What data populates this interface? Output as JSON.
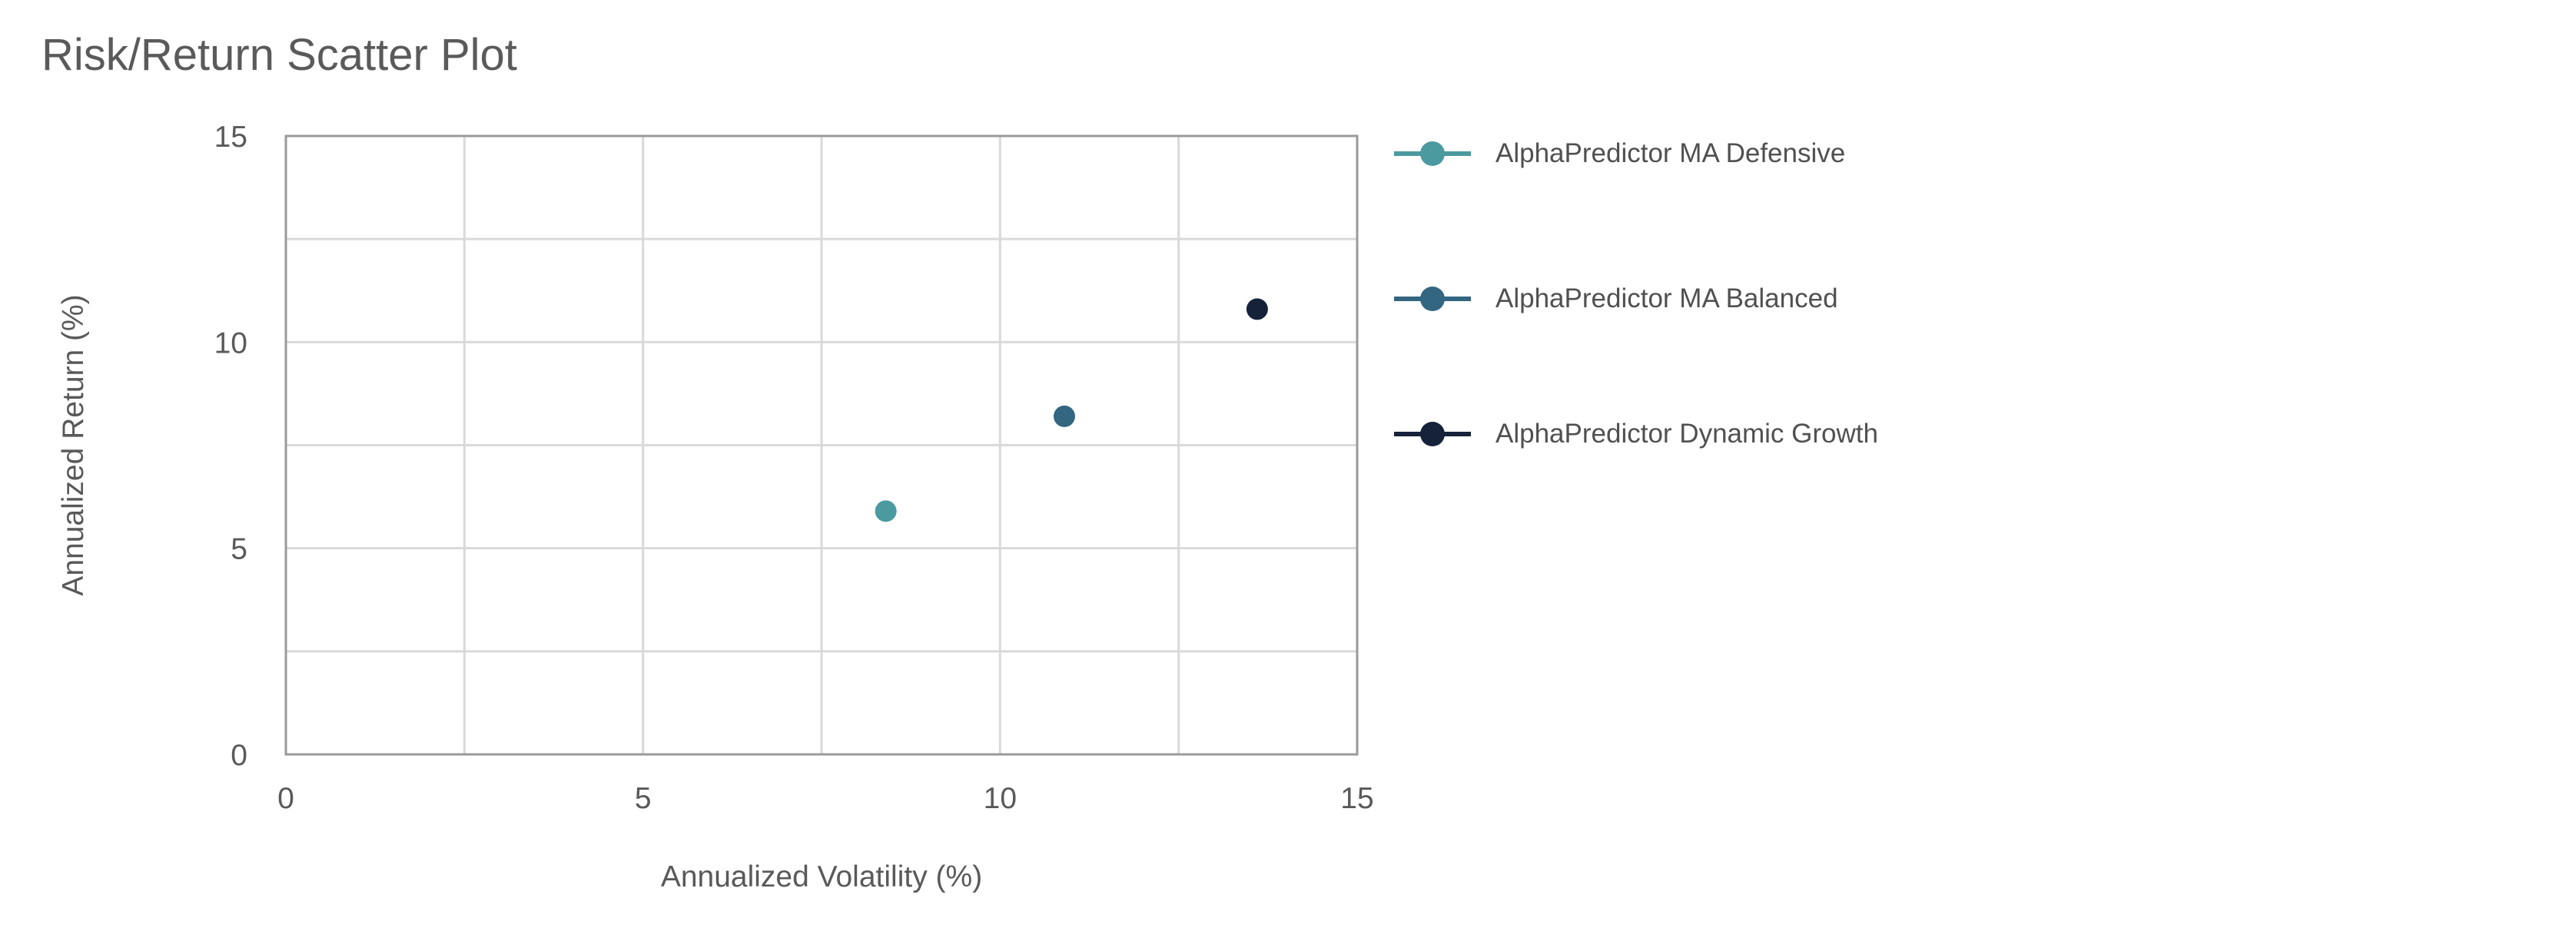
{
  "title": "Risk/Return Scatter Plot",
  "chart_data": {
    "type": "scatter",
    "title": "Risk/Return Scatter Plot",
    "xlabel": "Annualized Volatility (%)",
    "ylabel": "Annualized Return (%)",
    "xlim": [
      0,
      15
    ],
    "ylim": [
      0,
      15
    ],
    "xticks": [
      "0",
      "5",
      "10",
      "15"
    ],
    "yticks": [
      "0",
      "5",
      "10",
      "15"
    ],
    "xtick_values": [
      0,
      5,
      10,
      15
    ],
    "ytick_values": [
      0,
      5,
      10,
      15
    ],
    "grid_x": [
      0,
      2.5,
      5,
      7.5,
      10,
      12.5,
      15
    ],
    "grid_y": [
      0,
      2.5,
      5,
      7.5,
      10,
      12.5,
      15
    ],
    "grid": true,
    "legend_position": "right",
    "series": [
      {
        "name": "AlphaPredictor MA Defensive",
        "color": "#4a9aa0",
        "x": [
          8.4
        ],
        "y": [
          5.9
        ]
      },
      {
        "name": "AlphaPredictor MA Balanced",
        "color": "#336680",
        "x": [
          10.9
        ],
        "y": [
          8.2
        ]
      },
      {
        "name": "AlphaPredictor Dynamic Growth",
        "color": "#16223a",
        "x": [
          13.6
        ],
        "y": [
          10.8
        ]
      }
    ]
  }
}
